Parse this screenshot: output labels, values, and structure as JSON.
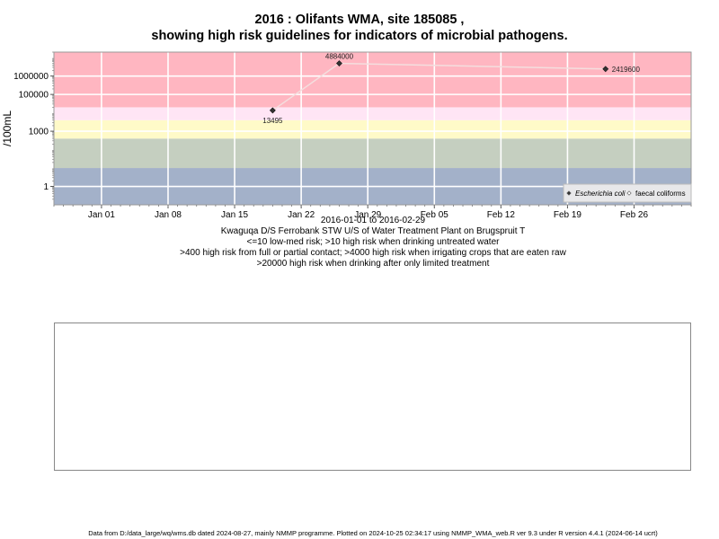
{
  "chart_data": {
    "type": "line",
    "title_line1": "2016 : Olifants WMA, site 185085 ,",
    "title_line2": "showing high risk guidelines for indicators of microbial pathogens.",
    "ylabel": "/100mL",
    "y_scale": "log",
    "ylim": [
      0.1,
      20000000
    ],
    "xlim": [
      "2015-12-27",
      "2016-03-03"
    ],
    "x_ticks": [
      {
        "date": "2016-01-01",
        "label": "Jan 01"
      },
      {
        "date": "2016-01-08",
        "label": "Jan 08"
      },
      {
        "date": "2016-01-15",
        "label": "Jan 15"
      },
      {
        "date": "2016-01-22",
        "label": "Jan 22"
      },
      {
        "date": "2016-01-29",
        "label": "Jan 29"
      },
      {
        "date": "2016-02-05",
        "label": "Feb 05"
      },
      {
        "date": "2016-02-12",
        "label": "Feb 12"
      },
      {
        "date": "2016-02-19",
        "label": "Feb 19"
      },
      {
        "date": "2016-02-26",
        "label": "Feb 26"
      }
    ],
    "y_ticks": [
      {
        "value": 1,
        "label": "1"
      },
      {
        "value": 1000,
        "label": "1000"
      },
      {
        "value": 100000,
        "label": "100000"
      },
      {
        "value": 1000000,
        "label": "1000000"
      }
    ],
    "bands": [
      {
        "from": 0.1,
        "to": 10,
        "color": "#a3b1c9"
      },
      {
        "from": 10,
        "to": 400,
        "color": "#c5cfc0"
      },
      {
        "from": 400,
        "to": 4000,
        "color": "#fffac8"
      },
      {
        "from": 4000,
        "to": 20000,
        "color": "#ffe5f5"
      },
      {
        "from": 20000,
        "to": 20000000,
        "color": "#ffb6c1"
      }
    ],
    "series": [
      {
        "name": "Escherichia coli",
        "color": "#333333",
        "line_color": "#f4dede",
        "points": [
          {
            "x": "2016-01-19",
            "y": 13495,
            "label": "13495",
            "label_pos": "below"
          },
          {
            "x": "2016-01-26",
            "y": 4884000,
            "label": "4884000",
            "label_pos": "above"
          },
          {
            "x": "2016-02-23",
            "y": 2419600,
            "label": "2419600",
            "label_pos": "right"
          }
        ]
      },
      {
        "name": "faecal coliforms",
        "color": "#dddddd",
        "points": [
          {
            "x": "2016-01-26",
            "y": 4884000
          },
          {
            "x": "2016-02-23",
            "y": 2419600
          }
        ]
      }
    ],
    "legend": {
      "position": "bottom-right",
      "entries": [
        "Escherichia coli",
        "faecal coliforms"
      ]
    },
    "date_range": "2016-01-01 to 2016-02-29",
    "site_description": "Kwaguqa D/S Ferrobank STW U/S of Water Treatment Plant on Brugspruit T",
    "guidelines": [
      "<=10 low-med risk; >10 high risk when drinking untreated water",
      ">400 high risk from full or partial contact; >4000 high risk when irrigating crops that are eaten raw",
      ">20000 high risk when drinking after only limited treatment"
    ]
  },
  "footer": "Data from D:/data_large/wq/wms.db dated 2024-08-27, mainly NMMP programme. Plotted on 2024-10-25 02:34:17 using NMMP_WMA_web.R ver 9.3 under R version 4.4.1 (2024-06-14 ucrt)"
}
